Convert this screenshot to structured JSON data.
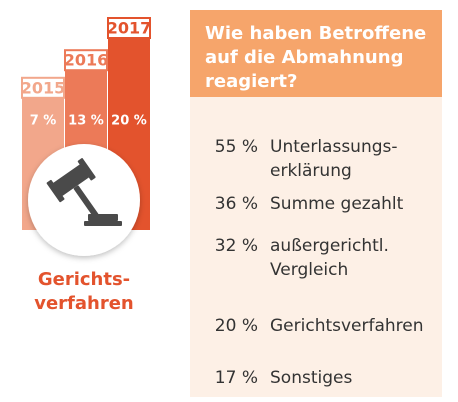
{
  "chart_data": {
    "type": "bar",
    "categories": [
      "2015",
      "2016",
      "2017"
    ],
    "values": [
      7,
      13,
      20
    ],
    "value_labels": [
      "7 %",
      "13 %",
      "20 %"
    ],
    "colors": [
      "#f2a78b",
      "#ec7a58",
      "#e3532d"
    ],
    "caption": [
      "Gerichts-",
      "verfahren"
    ]
  },
  "reactions": {
    "title": [
      "Wie haben Betroffene",
      "auf die Abmahnung",
      "reagiert?"
    ],
    "items": [
      {
        "percent": "55 %",
        "label": [
          "Unterlassungs-",
          "erklärung"
        ]
      },
      {
        "percent": "36 %",
        "label": [
          "Summe gezahlt"
        ]
      },
      {
        "percent": "32 %",
        "label": [
          "außergerichtl.",
          "Vergleich"
        ]
      },
      {
        "percent": "20 %",
        "label": [
          "Gerichtsverfahren"
        ]
      },
      {
        "percent": "17 %",
        "label": [
          "Sonstiges"
        ]
      }
    ]
  }
}
